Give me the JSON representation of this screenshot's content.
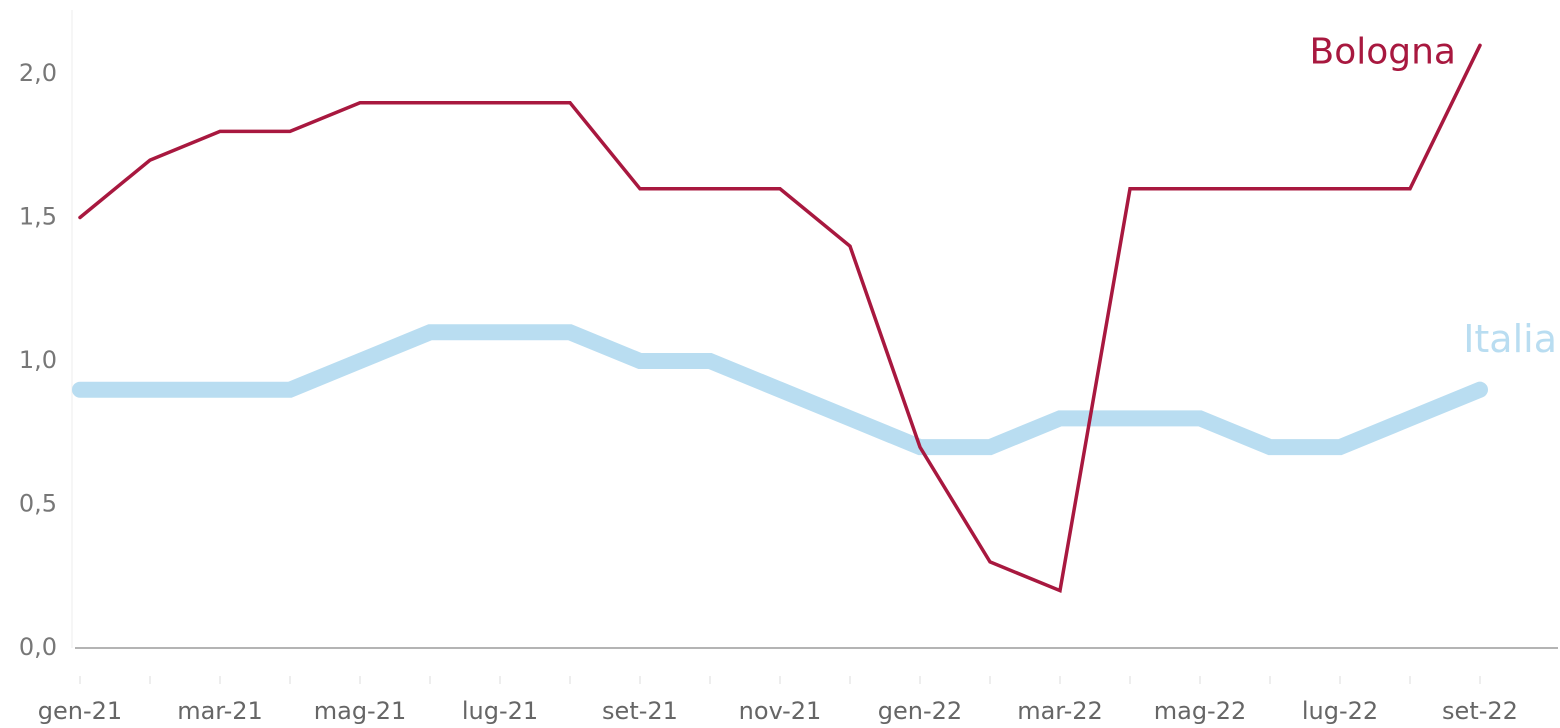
{
  "chart_data": {
    "type": "line",
    "categories": [
      "gen-21",
      null,
      "mar-21",
      null,
      "mag-21",
      null,
      "lug-21",
      null,
      "set-21",
      null,
      "nov-21",
      null,
      "gen-22",
      null,
      "mar-22",
      null,
      "mag-22",
      null,
      "lug-22",
      null,
      "set-22"
    ],
    "series": [
      {
        "name": "Italia",
        "color": "#b9ddf1",
        "width": 16,
        "values": [
          0.9,
          0.9,
          0.9,
          0.9,
          1.0,
          1.1,
          1.1,
          1.1,
          1.0,
          1.0,
          0.9,
          0.8,
          0.7,
          0.7,
          0.8,
          0.8,
          0.8,
          0.7,
          0.7,
          0.8,
          0.9
        ]
      },
      {
        "name": "Bologna",
        "color": "#a8183f",
        "width": 3.5,
        "values": [
          1.5,
          1.7,
          1.8,
          1.8,
          1.9,
          1.9,
          1.9,
          1.9,
          1.6,
          1.6,
          1.6,
          1.4,
          0.7,
          0.3,
          0.2,
          1.6,
          1.6,
          1.6,
          1.6,
          1.6,
          2.1
        ]
      }
    ],
    "ylim": [
      0,
      2.2
    ],
    "yticks": [
      {
        "value": 0,
        "label": "0,0"
      },
      {
        "value": 0.5,
        "label": "0,5"
      },
      {
        "value": 1,
        "label": "1,0"
      },
      {
        "value": 1.5,
        "label": "1,5"
      },
      {
        "value": 2,
        "label": "2,0"
      }
    ]
  }
}
